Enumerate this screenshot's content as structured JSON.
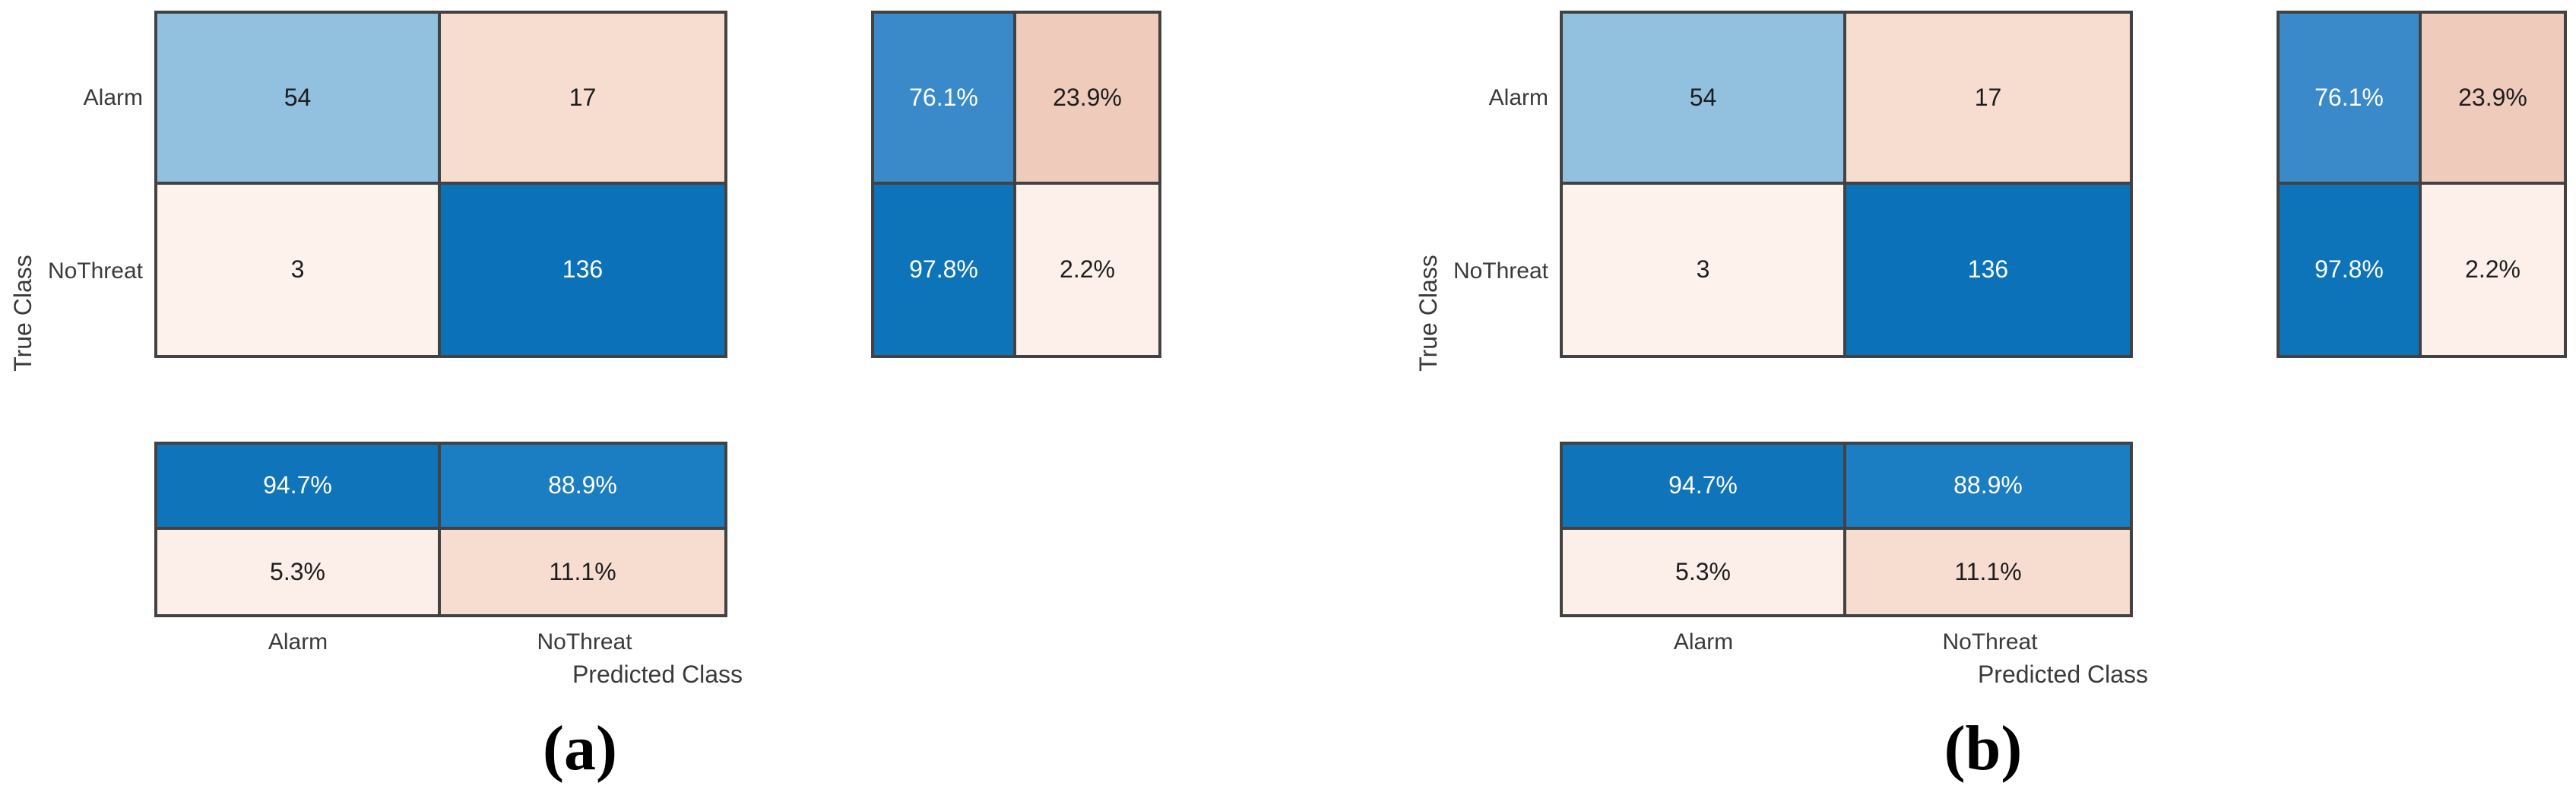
{
  "figure": {
    "background": "#ffffff",
    "border_color": "#424242",
    "label_color": "#3a3a3a"
  },
  "chart_data": [
    {
      "type": "heatmap",
      "caption": "(a)",
      "xlabel": "Predicted Class",
      "ylabel": "True Class",
      "x_categories": [
        "Alarm",
        "NoThreat"
      ],
      "y_categories": [
        "Alarm",
        "NoThreat"
      ],
      "matrix_values": [
        [
          54,
          17
        ],
        [
          3,
          136
        ]
      ],
      "row_summary_percent": [
        [
          76.1,
          23.9
        ],
        [
          97.8,
          2.2
        ]
      ],
      "column_summary_percent": [
        [
          94.7,
          88.9
        ],
        [
          5.3,
          11.1
        ]
      ],
      "matrix_cells": [
        {
          "value": "54",
          "bg": "#92c1e0",
          "fg": "#1d1d1d"
        },
        {
          "value": "17",
          "bg": "#f6ddd0",
          "fg": "#1d1d1d"
        },
        {
          "value": "3",
          "bg": "#fdf2ec",
          "fg": "#1d1d1d"
        },
        {
          "value": "136",
          "bg": "#0b72b9",
          "fg": "#ffffff"
        }
      ],
      "row_summary_cells": [
        {
          "value": "76.1%",
          "bg": "#3a89c9",
          "fg": "#ffffff"
        },
        {
          "value": "23.9%",
          "bg": "#efcbbc",
          "fg": "#1d1d1d"
        },
        {
          "value": "97.8%",
          "bg": "#0e74ba",
          "fg": "#ffffff"
        },
        {
          "value": "2.2%",
          "bg": "#fdf0ea",
          "fg": "#1d1d1d"
        }
      ],
      "column_summary_cells": [
        {
          "value": "94.7%",
          "bg": "#0f74ba",
          "fg": "#ffffff"
        },
        {
          "value": "88.9%",
          "bg": "#1c7ec2",
          "fg": "#ffffff"
        },
        {
          "value": "5.3%",
          "bg": "#fcefe9",
          "fg": "#1d1d1d"
        },
        {
          "value": "11.1%",
          "bg": "#f7ddd0",
          "fg": "#1d1d1d"
        }
      ]
    },
    {
      "type": "heatmap",
      "caption": "(b)",
      "xlabel": "Predicted Class",
      "ylabel": "True Class",
      "x_categories": [
        "Alarm",
        "NoThreat"
      ],
      "y_categories": [
        "Alarm",
        "NoThreat"
      ],
      "matrix_values": [
        [
          54,
          17
        ],
        [
          3,
          136
        ]
      ],
      "row_summary_percent": [
        [
          76.1,
          23.9
        ],
        [
          97.8,
          2.2
        ]
      ],
      "column_summary_percent": [
        [
          94.7,
          88.9
        ],
        [
          5.3,
          11.1
        ]
      ],
      "matrix_cells": [
        {
          "value": "54",
          "bg": "#92c1e0",
          "fg": "#1d1d1d"
        },
        {
          "value": "17",
          "bg": "#f6ddd0",
          "fg": "#1d1d1d"
        },
        {
          "value": "3",
          "bg": "#fdf2ec",
          "fg": "#1d1d1d"
        },
        {
          "value": "136",
          "bg": "#0b72b9",
          "fg": "#ffffff"
        }
      ],
      "row_summary_cells": [
        {
          "value": "76.1%",
          "bg": "#3a89c9",
          "fg": "#ffffff"
        },
        {
          "value": "23.9%",
          "bg": "#efcbbc",
          "fg": "#1d1d1d"
        },
        {
          "value": "97.8%",
          "bg": "#0e74ba",
          "fg": "#ffffff"
        },
        {
          "value": "2.2%",
          "bg": "#fdf0ea",
          "fg": "#1d1d1d"
        }
      ],
      "column_summary_cells": [
        {
          "value": "94.7%",
          "bg": "#0f74ba",
          "fg": "#ffffff"
        },
        {
          "value": "88.9%",
          "bg": "#1c7ec2",
          "fg": "#ffffff"
        },
        {
          "value": "5.3%",
          "bg": "#fcefe9",
          "fg": "#1d1d1d"
        },
        {
          "value": "11.1%",
          "bg": "#f7ddd0",
          "fg": "#1d1d1d"
        }
      ]
    }
  ]
}
